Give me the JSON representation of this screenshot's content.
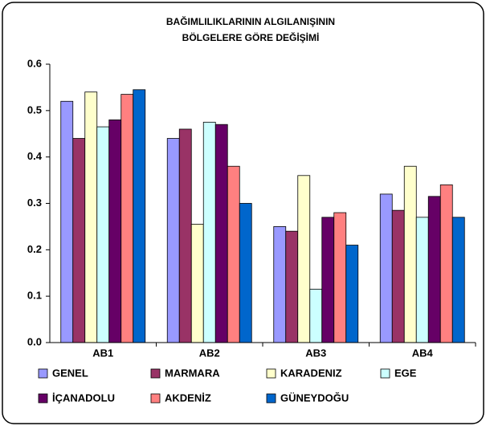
{
  "chart_data": {
    "type": "bar",
    "title_lines": [
      "BAĞIMLILIKLARININ ALGILANIŞININ",
      "BÖLGELERE GÖRE DEĞİŞİMİ"
    ],
    "categories": [
      "AB1",
      "AB2",
      "AB3",
      "AB4"
    ],
    "series": [
      {
        "name": "GENEL",
        "color": "#9999ff",
        "values": [
          0.52,
          0.44,
          0.25,
          0.32
        ]
      },
      {
        "name": "MARMARA",
        "color": "#993366",
        "values": [
          0.44,
          0.46,
          0.24,
          0.285
        ]
      },
      {
        "name": "KARADENIZ",
        "color": "#ffffcc",
        "values": [
          0.54,
          0.255,
          0.36,
          0.38
        ]
      },
      {
        "name": "EGE",
        "color": "#ccffff",
        "values": [
          0.465,
          0.475,
          0.115,
          0.27
        ]
      },
      {
        "name": "İÇANADOLU",
        "color": "#660066",
        "values": [
          0.48,
          0.47,
          0.27,
          0.315
        ]
      },
      {
        "name": "AKDENİZ",
        "color": "#ff8080",
        "values": [
          0.535,
          0.38,
          0.28,
          0.34
        ]
      },
      {
        "name": "GÜNEYDOĞU",
        "color": "#0066cc",
        "values": [
          0.545,
          0.3,
          0.21,
          0.27
        ]
      }
    ],
    "ylim": [
      0,
      0.6
    ],
    "yticks": [
      {
        "value": 0,
        "label": "0.0"
      },
      0.1,
      0.2,
      0.3,
      0.4,
      0.5,
      0.6
    ],
    "grid": false
  }
}
